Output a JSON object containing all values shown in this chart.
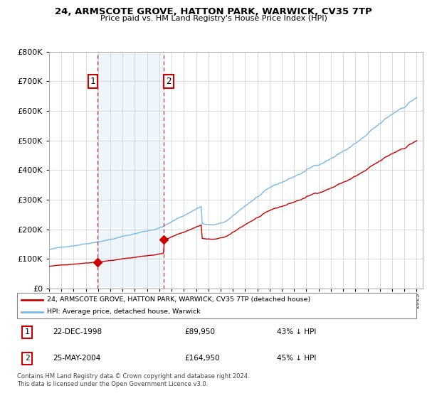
{
  "title": "24, ARMSCOTE GROVE, HATTON PARK, WARWICK, CV35 7TP",
  "subtitle": "Price paid vs. HM Land Registry's House Price Index (HPI)",
  "ylim": [
    0,
    800000
  ],
  "hpi_color": "#7ab8e8",
  "price_color": "#cc0000",
  "dashed_color": "#cc0000",
  "transaction1": {
    "label": "1",
    "date": "22-DEC-1998",
    "price": 89950,
    "x": 1998.97
  },
  "transaction2": {
    "label": "2",
    "date": "25-MAY-2004",
    "price": 164950,
    "x": 2004.38
  },
  "legend_line1": "24, ARMSCOTE GROVE, HATTON PARK, WARWICK, CV35 7TP (detached house)",
  "legend_line2": "HPI: Average price, detached house, Warwick",
  "table_row1": [
    "1",
    "22-DEC-1998",
    "£89,950",
    "43% ↓ HPI"
  ],
  "table_row2": [
    "2",
    "25-MAY-2004",
    "£164,950",
    "45% ↓ HPI"
  ],
  "footnote": "Contains HM Land Registry data © Crown copyright and database right 2024.\nThis data is licensed under the Open Government Licence v3.0.",
  "background_color": "#ffffff",
  "grid_color": "#cccccc"
}
